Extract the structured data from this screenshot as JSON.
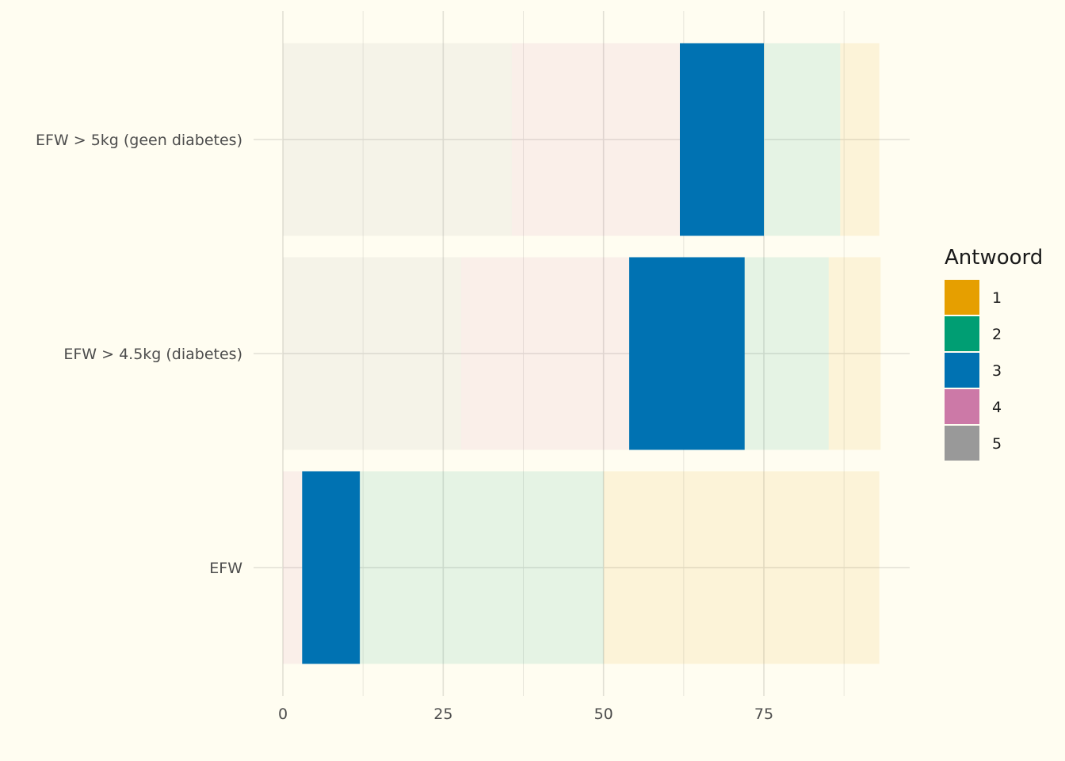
{
  "chart_data": {
    "type": "bar",
    "orientation": "horizontal",
    "stacked": true,
    "categories": [
      "EFW > 5kg (geen diabetes)",
      "EFW > 4.5kg (diabetes)",
      "EFW"
    ],
    "highlighted_series": "3",
    "series": [
      {
        "name": "5",
        "color": "#999999",
        "values": [
          35.7,
          27.8,
          0
        ]
      },
      {
        "name": "4",
        "color": "#cc79a7",
        "values": [
          26.2,
          26.2,
          3
        ]
      },
      {
        "name": "3",
        "color": "#0072b2",
        "values": [
          13.1,
          18.0,
          9
        ]
      },
      {
        "name": "2",
        "color": "#009e73",
        "values": [
          11.9,
          13.1,
          38
        ]
      },
      {
        "name": "1",
        "color": "#e69f00",
        "values": [
          6.1,
          8.1,
          43
        ]
      }
    ],
    "x_ticks": [
      "0",
      "25",
      "50",
      "75"
    ],
    "xlim": [
      0,
      97
    ],
    "xlabel": "",
    "ylabel": "",
    "legend": {
      "title": "Antwoord",
      "position": "right",
      "entries": [
        {
          "label": "1",
          "color": "#e69f00"
        },
        {
          "label": "2",
          "color": "#009e73"
        },
        {
          "label": "3",
          "color": "#0072b2"
        },
        {
          "label": "4",
          "color": "#cc79a7"
        },
        {
          "label": "5",
          "color": "#999999"
        }
      ]
    },
    "grid": true
  }
}
